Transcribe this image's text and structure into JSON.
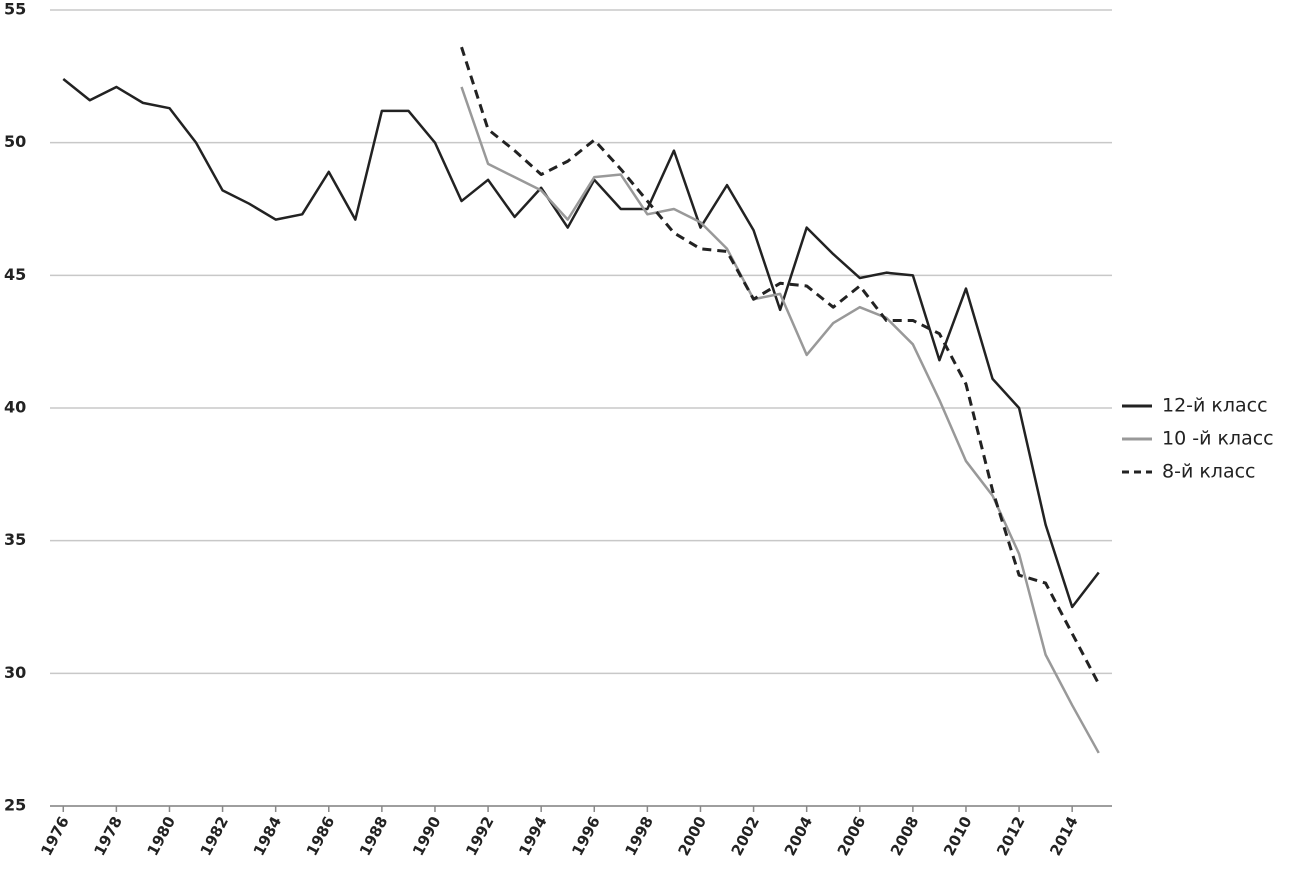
{
  "chart_data": {
    "type": "line",
    "x": [
      1976,
      1977,
      1978,
      1979,
      1980,
      1981,
      1982,
      1983,
      1984,
      1985,
      1986,
      1987,
      1988,
      1989,
      1990,
      1991,
      1992,
      1993,
      1994,
      1995,
      1996,
      1997,
      1998,
      1999,
      2000,
      2001,
      2002,
      2003,
      2004,
      2005,
      2006,
      2007,
      2008,
      2009,
      2010,
      2011,
      2012,
      2013,
      2014,
      2015
    ],
    "series": [
      {
        "name": "12-й класс",
        "color": "#222222",
        "dash": false,
        "values": [
          52.4,
          51.6,
          52.1,
          51.5,
          51.3,
          50.0,
          48.2,
          47.7,
          47.1,
          47.3,
          48.9,
          47.1,
          51.2,
          51.2,
          50.0,
          47.8,
          48.6,
          47.2,
          48.3,
          46.8,
          48.6,
          47.5,
          47.5,
          49.7,
          46.8,
          48.4,
          46.7,
          43.7,
          46.8,
          45.8,
          44.9,
          45.1,
          45.0,
          41.8,
          44.5,
          41.1,
          40.0,
          35.6,
          32.5,
          33.8
        ]
      },
      {
        "name": "10 -й класс",
        "color": "#999999",
        "dash": false,
        "values": [
          null,
          null,
          null,
          null,
          null,
          null,
          null,
          null,
          null,
          null,
          null,
          null,
          null,
          null,
          null,
          52.1,
          49.2,
          48.7,
          48.2,
          47.1,
          48.7,
          48.8,
          47.3,
          47.5,
          47.0,
          46.0,
          44.1,
          44.3,
          42.0,
          43.2,
          43.8,
          43.4,
          42.4,
          40.3,
          38.0,
          36.7,
          34.5,
          30.7,
          28.8,
          27.0
        ]
      },
      {
        "name": "8-й класс",
        "color": "#222222",
        "dash": true,
        "values": [
          null,
          null,
          null,
          null,
          null,
          null,
          null,
          null,
          null,
          null,
          null,
          null,
          null,
          null,
          null,
          53.6,
          50.5,
          49.7,
          48.8,
          49.3,
          50.1,
          49.0,
          47.8,
          46.6,
          46.0,
          45.9,
          44.1,
          44.7,
          44.6,
          43.8,
          44.6,
          43.3,
          43.3,
          42.8,
          40.9,
          36.9,
          33.7,
          33.4,
          31.5,
          29.6
        ]
      }
    ],
    "xlim": [
      1975.5,
      2015.5
    ],
    "xticks": [
      1976,
      1978,
      1980,
      1982,
      1984,
      1986,
      1988,
      1990,
      1992,
      1994,
      1996,
      1998,
      2000,
      2002,
      2004,
      2006,
      2008,
      2010,
      2012,
      2014
    ],
    "ylim": [
      25,
      55
    ],
    "yticks": [
      25,
      30,
      35,
      40,
      45,
      50,
      55
    ],
    "grid": true,
    "legend": "right"
  }
}
